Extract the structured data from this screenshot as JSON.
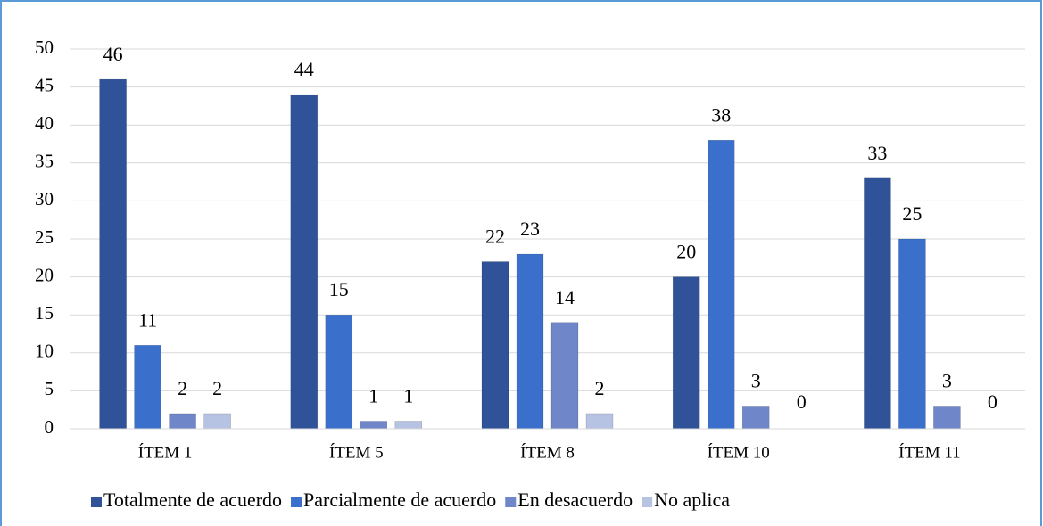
{
  "chart_data": {
    "type": "bar",
    "categories": [
      "ÍTEM 1",
      "ÍTEM 5",
      "ÍTEM 8",
      "ÍTEM 10",
      "ÍTEM 11"
    ],
    "series": [
      {
        "name": "Totalmente de acuerdo",
        "color": "#2f5299",
        "values": [
          46,
          44,
          22,
          20,
          33
        ]
      },
      {
        "name": "Parcialmente de acuerdo",
        "color": "#3b6fcc",
        "values": [
          11,
          15,
          23,
          38,
          25
        ]
      },
      {
        "name": "En desacuerdo",
        "color": "#6f86c9",
        "values": [
          2,
          1,
          14,
          3,
          3
        ]
      },
      {
        "name": "No aplica",
        "color": "#b7c3e3",
        "values": [
          2,
          1,
          2,
          0,
          0
        ]
      }
    ],
    "ylim": [
      0,
      50
    ],
    "yticks": [
      0,
      5,
      10,
      15,
      20,
      25,
      30,
      35,
      40,
      45,
      50
    ],
    "grid": true,
    "legend": "bottom"
  }
}
